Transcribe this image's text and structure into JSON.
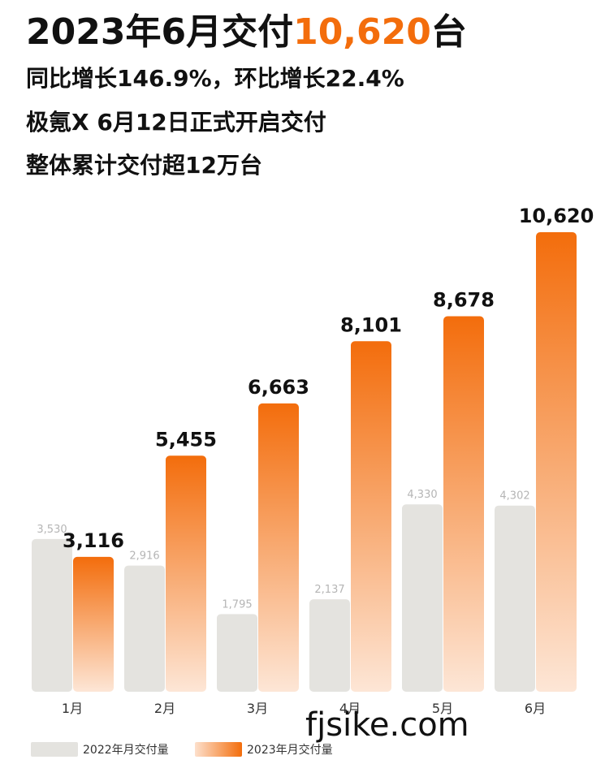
{
  "header": {
    "headline_prefix": "2023年6月交付",
    "headline_number": "10,620",
    "headline_suffix": "台",
    "line1": "同比增长146.9%，环比增长22.4%",
    "line2": "极氪X 6月12日正式开启交付",
    "line3": "整体累计交付超12万台"
  },
  "watermark": "fjsike.com",
  "colors": {
    "accent": "#f36d0c",
    "bar_2022": "#e4e3df",
    "bar_2023_top": "#f36d0c",
    "bar_2023_bottom": "#fde6d6"
  },
  "chart_data": {
    "type": "bar",
    "categories": [
      "1月",
      "2月",
      "3月",
      "4月",
      "5月",
      "6月"
    ],
    "series": [
      {
        "name": "2022年月交付量",
        "values": [
          3530,
          2916,
          1795,
          2137,
          4330,
          4302
        ],
        "labels": [
          "3,530",
          "2,916",
          "1,795",
          "2,137",
          "4,330",
          "4,302"
        ]
      },
      {
        "name": "2023年月交付量",
        "values": [
          3116,
          5455,
          6663,
          8101,
          8678,
          10620
        ],
        "labels": [
          "3,116",
          "5,455",
          "6,663",
          "8,101",
          "8,678",
          "10,620"
        ]
      }
    ],
    "legend_position": "bottom-left",
    "grid": false
  }
}
